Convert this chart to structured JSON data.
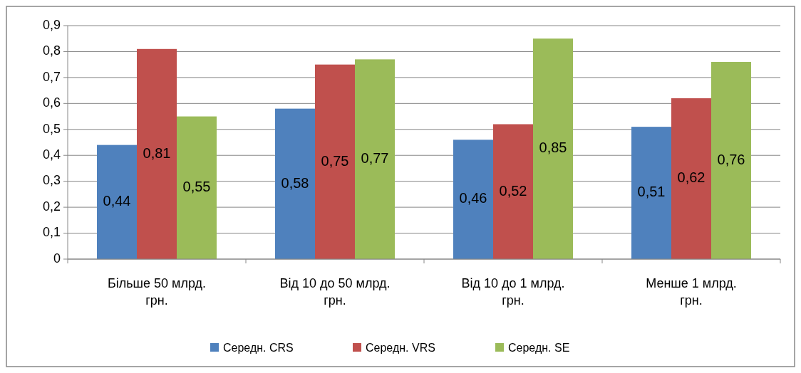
{
  "chart_data": {
    "type": "bar",
    "categories": [
      "Більше 50 млрд. грн.",
      "Від 10 до 50 млрд. грн.",
      "Від 10 до 1 млрд. грн.",
      "Менше 1 млрд. грн."
    ],
    "series": [
      {
        "name": "Середн. CRS",
        "color": "#4f81bd",
        "values": [
          0.44,
          0.58,
          0.46,
          0.51
        ],
        "value_labels": [
          "0,44",
          "0,58",
          "0,46",
          "0,51"
        ]
      },
      {
        "name": "Середн. VRS",
        "color": "#c0504d",
        "values": [
          0.81,
          0.75,
          0.52,
          0.62
        ],
        "value_labels": [
          "0,81",
          "0,75",
          "0,52",
          "0,62"
        ]
      },
      {
        "name": "Середн. SE",
        "color": "#9bbb59",
        "values": [
          0.55,
          0.77,
          0.85,
          0.76
        ],
        "value_labels": [
          "0,55",
          "0,77",
          "0,85",
          "0,76"
        ]
      }
    ],
    "ylim": [
      0,
      0.9
    ],
    "yticks": [
      {
        "value": 0,
        "label": "0"
      },
      {
        "value": 0.1,
        "label": "0,1"
      },
      {
        "value": 0.2,
        "label": "0,2"
      },
      {
        "value": 0.3,
        "label": "0,3"
      },
      {
        "value": 0.4,
        "label": "0,4"
      },
      {
        "value": 0.5,
        "label": "0,5"
      },
      {
        "value": 0.6,
        "label": "0,6"
      },
      {
        "value": 0.7,
        "label": "0,7"
      },
      {
        "value": 0.8,
        "label": "0,8"
      },
      {
        "value": 0.9,
        "label": "0,9"
      }
    ],
    "grid": "y",
    "legend": "bottom"
  }
}
